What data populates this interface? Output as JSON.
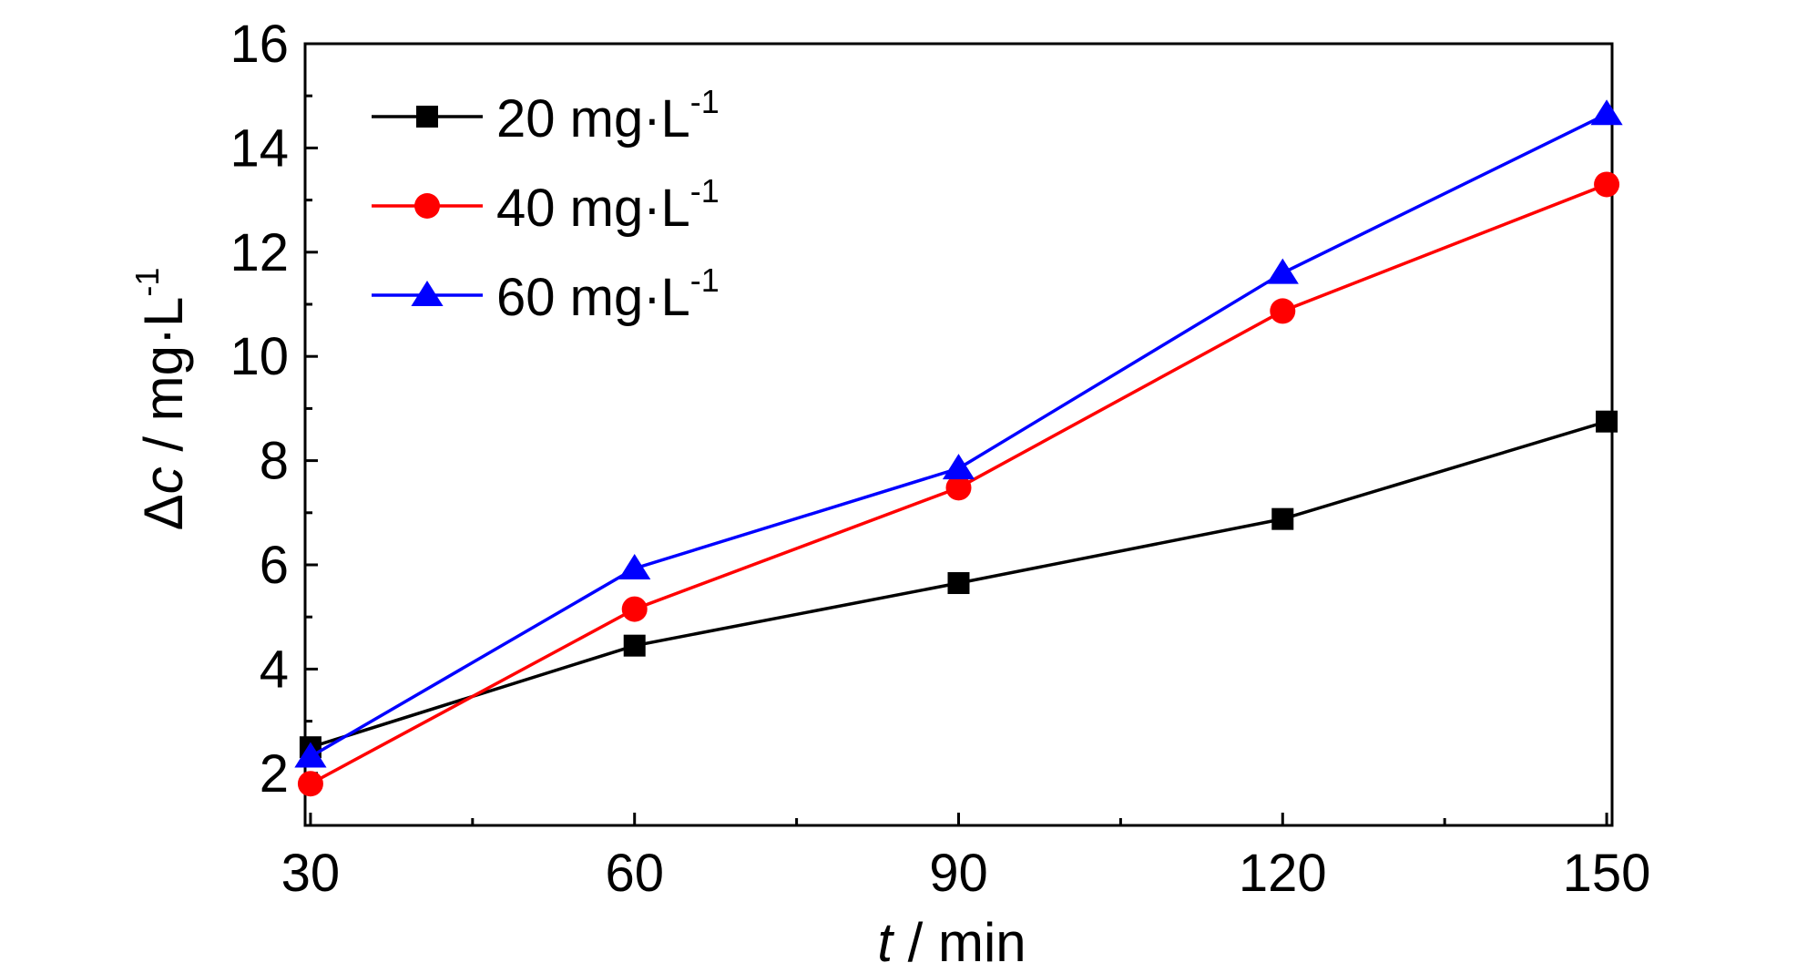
{
  "chart_data": {
    "type": "line",
    "title": "",
    "xlabel": {
      "italic": "t",
      "rest": " / min"
    },
    "ylabel": {
      "prefix": "Δ",
      "italic": "c",
      "rest": " / mg·L",
      "sup": "-1"
    },
    "x": [
      30,
      60,
      90,
      120,
      150
    ],
    "x_ticks": [
      "30",
      "60",
      "90",
      "120",
      "150"
    ],
    "xlim": [
      29.5,
      150.5
    ],
    "ylim": [
      1,
      16
    ],
    "y_ticks": [
      "2",
      "4",
      "6",
      "8",
      "10",
      "12",
      "14",
      "16"
    ],
    "legend_position": "top-left",
    "grid": false,
    "series": [
      {
        "name": "20 mg·L",
        "name_sup": "-1",
        "color": "#000000",
        "marker": "square",
        "values": [
          2.5,
          4.45,
          5.65,
          6.88,
          8.75
        ]
      },
      {
        "name": "40 mg·L",
        "name_sup": "-1",
        "color": "#ff0000",
        "marker": "circle",
        "values": [
          1.8,
          5.15,
          7.48,
          10.87,
          13.3
        ]
      },
      {
        "name": "60 mg·L",
        "name_sup": "-1",
        "color": "#0000ff",
        "marker": "triangle",
        "values": [
          2.32,
          5.93,
          7.85,
          11.6,
          14.65
        ]
      }
    ]
  }
}
